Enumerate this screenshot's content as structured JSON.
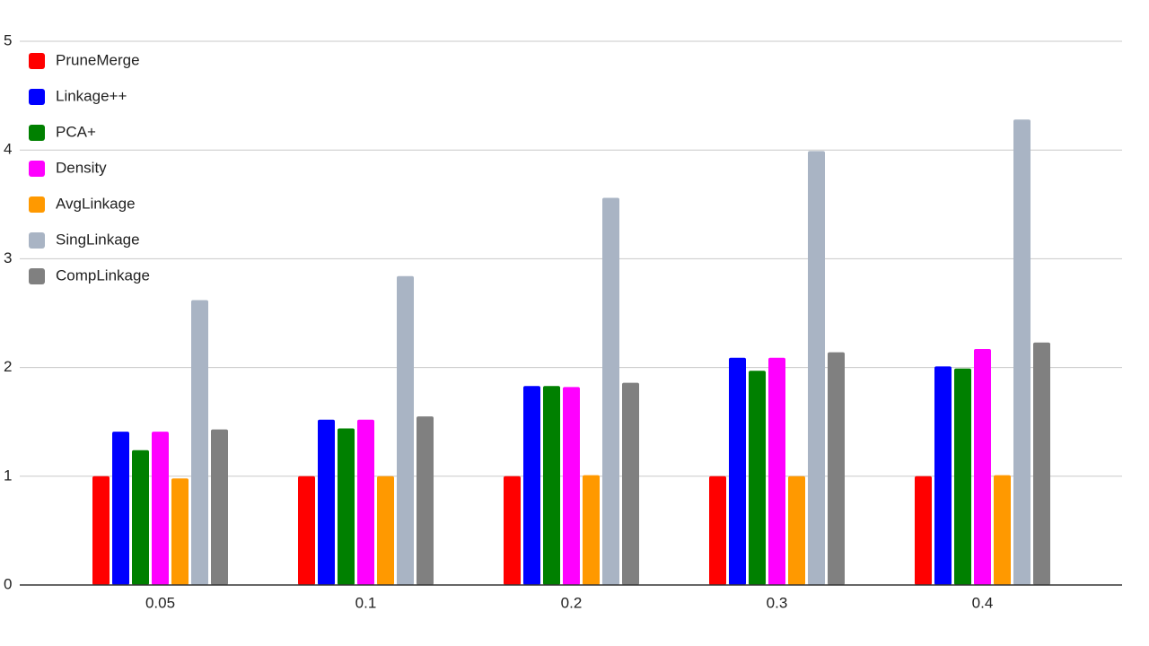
{
  "chart_data": {
    "type": "bar",
    "categories": [
      "0.05",
      "0.1",
      "0.2",
      "0.3",
      "0.4"
    ],
    "series": [
      {
        "name": "PruneMerge",
        "color": "#ff0000",
        "values": [
          1.0,
          1.0,
          1.0,
          1.0,
          1.0
        ]
      },
      {
        "name": "Linkage++",
        "color": "#0000ff",
        "values": [
          1.41,
          1.52,
          1.83,
          2.09,
          2.01
        ]
      },
      {
        "name": "PCA+",
        "color": "#008000",
        "values": [
          1.24,
          1.44,
          1.83,
          1.97,
          1.99
        ]
      },
      {
        "name": "Density",
        "color": "#ff00ff",
        "values": [
          1.41,
          1.52,
          1.82,
          2.09,
          2.17
        ]
      },
      {
        "name": "AvgLinkage",
        "color": "#ff9900",
        "values": [
          0.98,
          1.0,
          1.01,
          1.0,
          1.01
        ]
      },
      {
        "name": "SingLinkage",
        "color": "#a9b4c4",
        "values": [
          2.62,
          2.84,
          3.56,
          3.99,
          4.28
        ]
      },
      {
        "name": "CompLinkage",
        "color": "#808080",
        "values": [
          1.43,
          1.55,
          1.86,
          2.14,
          2.23
        ]
      }
    ],
    "ylim": [
      0,
      5
    ],
    "yticks": [
      0,
      1,
      2,
      3,
      4,
      5
    ],
    "grid": true,
    "legend": "top-left"
  }
}
